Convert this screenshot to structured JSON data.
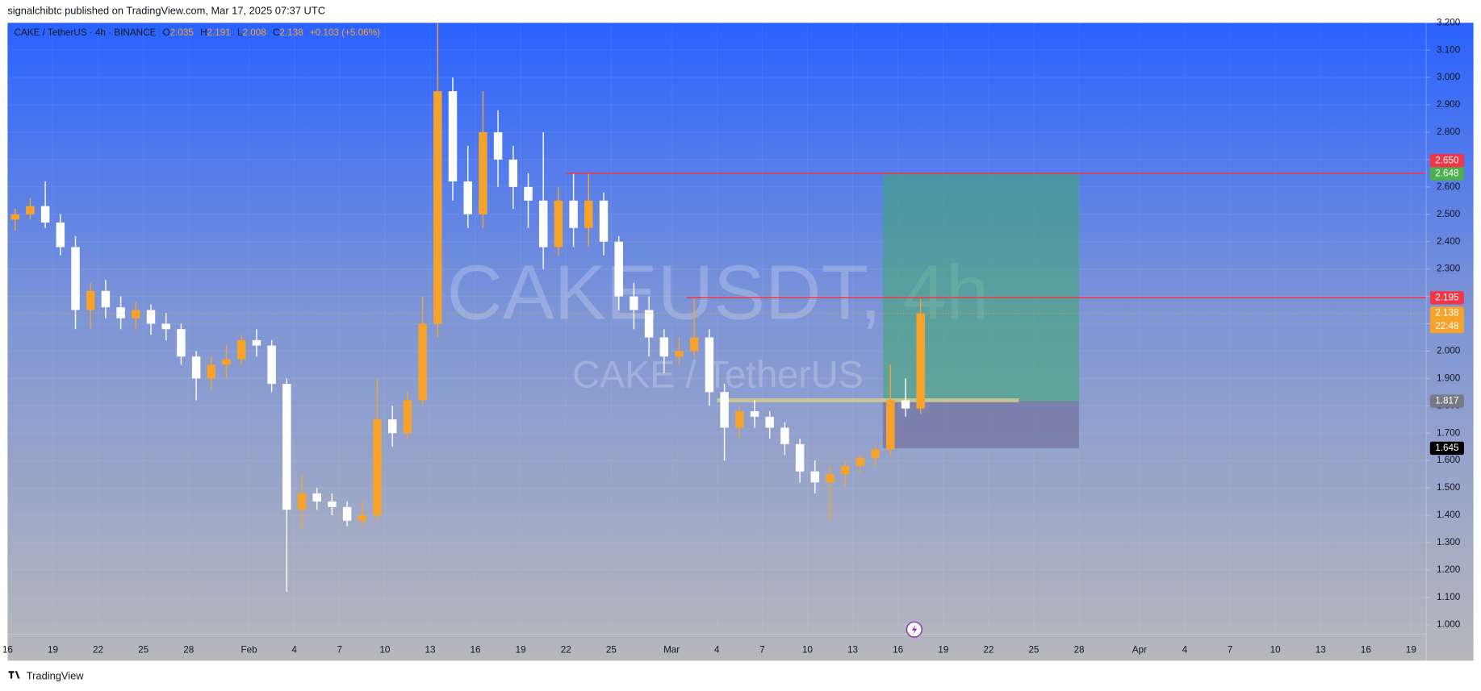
{
  "header": {
    "text": "signalchibtc published on TradingView.com, Mar 17, 2025 07:37 UTC"
  },
  "footer": {
    "brand": "TradingView"
  },
  "chart_data": {
    "type": "candlestick",
    "symbol": "CAKE / TetherUS · 4h · BINANCE",
    "ohlc_labels": [
      "O",
      "H",
      "L",
      "C"
    ],
    "ohlc_values": [
      2.035,
      2.191,
      2.008,
      2.138
    ],
    "change": "+0.103 (+5.06%)",
    "watermark_title": "CAKEUSDT, 4h",
    "watermark_subtitle": "CAKE / TetherUS",
    "up_color": "#f7a32b",
    "down_color": "#ffffff",
    "x": [
      "2025-01-16",
      "2025-01-17",
      "2025-01-18",
      "2025-01-19",
      "2025-01-20",
      "2025-01-21",
      "2025-01-22",
      "2025-01-23",
      "2025-01-24",
      "2025-01-25",
      "2025-01-26",
      "2025-01-27",
      "2025-01-28",
      "2025-01-29",
      "2025-01-30",
      "2025-01-31",
      "2025-02-01",
      "2025-02-02",
      "2025-02-03",
      "2025-02-04",
      "2025-02-05",
      "2025-02-06",
      "2025-02-07",
      "2025-02-08",
      "2025-02-09",
      "2025-02-10",
      "2025-02-11",
      "2025-02-12",
      "2025-02-13",
      "2025-02-14",
      "2025-02-15",
      "2025-02-16",
      "2025-02-17",
      "2025-02-18",
      "2025-02-19",
      "2025-02-20",
      "2025-02-21",
      "2025-02-22",
      "2025-02-23",
      "2025-02-24",
      "2025-02-25",
      "2025-02-26",
      "2025-02-27",
      "2025-02-28",
      "2025-03-01",
      "2025-03-02",
      "2025-03-03",
      "2025-03-04",
      "2025-03-05",
      "2025-03-06",
      "2025-03-07",
      "2025-03-08",
      "2025-03-09",
      "2025-03-10",
      "2025-03-11",
      "2025-03-12",
      "2025-03-13",
      "2025-03-14",
      "2025-03-15",
      "2025-03-16",
      "2025-03-17"
    ],
    "open": [
      2.48,
      2.5,
      2.53,
      2.47,
      2.38,
      2.15,
      2.22,
      2.16,
      2.12,
      2.15,
      2.1,
      2.08,
      1.98,
      1.9,
      1.95,
      1.97,
      2.04,
      2.02,
      1.88,
      1.42,
      1.48,
      1.45,
      1.43,
      1.38,
      1.4,
      1.75,
      1.7,
      1.82,
      2.1,
      2.95,
      2.62,
      2.5,
      2.8,
      2.7,
      2.6,
      2.55,
      2.38,
      2.55,
      2.45,
      2.55,
      2.4,
      2.2,
      2.15,
      2.05,
      1.98,
      2.0,
      2.05,
      1.85,
      1.72,
      1.78,
      1.76,
      1.72,
      1.66,
      1.56,
      1.52,
      1.55,
      1.58,
      1.61,
      1.64,
      1.82,
      1.79
    ],
    "high": [
      2.52,
      2.56,
      2.62,
      2.5,
      2.42,
      2.25,
      2.26,
      2.2,
      2.18,
      2.17,
      2.14,
      2.1,
      2.0,
      1.98,
      2.02,
      2.06,
      2.08,
      2.04,
      1.9,
      1.55,
      1.5,
      1.48,
      1.45,
      1.45,
      1.9,
      1.8,
      1.85,
      2.2,
      3.2,
      3.0,
      2.75,
      2.95,
      2.88,
      2.75,
      2.65,
      2.8,
      2.6,
      2.65,
      2.65,
      2.58,
      2.42,
      2.25,
      2.2,
      2.08,
      2.05,
      2.19,
      2.08,
      1.88,
      1.8,
      1.82,
      1.78,
      1.74,
      1.68,
      1.6,
      1.58,
      1.6,
      1.62,
      1.66,
      1.95,
      1.9,
      2.19
    ],
    "low": [
      2.44,
      2.48,
      2.45,
      2.35,
      2.08,
      2.08,
      2.12,
      2.08,
      2.08,
      2.06,
      2.04,
      1.95,
      1.82,
      1.86,
      1.9,
      1.95,
      1.98,
      1.85,
      1.12,
      1.35,
      1.42,
      1.4,
      1.36,
      1.36,
      1.38,
      1.65,
      1.68,
      1.8,
      2.05,
      2.55,
      2.45,
      2.45,
      2.6,
      2.52,
      2.45,
      2.3,
      2.35,
      2.38,
      2.38,
      2.35,
      2.15,
      2.08,
      1.98,
      1.92,
      1.95,
      1.98,
      1.8,
      1.6,
      1.68,
      1.72,
      1.68,
      1.62,
      1.52,
      1.48,
      1.38,
      1.5,
      1.55,
      1.58,
      1.62,
      1.76,
      1.77
    ],
    "close": [
      2.5,
      2.53,
      2.47,
      2.38,
      2.15,
      2.22,
      2.16,
      2.12,
      2.15,
      2.1,
      2.08,
      1.98,
      1.9,
      1.95,
      1.97,
      2.04,
      2.02,
      1.88,
      1.42,
      1.48,
      1.45,
      1.43,
      1.38,
      1.4,
      1.75,
      1.7,
      1.82,
      2.1,
      2.95,
      2.62,
      2.5,
      2.8,
      2.7,
      2.6,
      2.55,
      2.38,
      2.55,
      2.45,
      2.55,
      2.4,
      2.2,
      2.15,
      2.05,
      1.98,
      2.0,
      2.05,
      1.85,
      1.72,
      1.78,
      1.76,
      1.72,
      1.66,
      1.56,
      1.52,
      1.55,
      1.58,
      1.61,
      1.64,
      1.82,
      1.79,
      2.138
    ],
    "xlim": [
      "2025-01-16",
      "2025-04-20"
    ],
    "xticks": [
      {
        "value": "2025-01-16",
        "label": "16"
      },
      {
        "value": "2025-01-19",
        "label": "19"
      },
      {
        "value": "2025-01-22",
        "label": "22"
      },
      {
        "value": "2025-01-25",
        "label": "25"
      },
      {
        "value": "2025-01-28",
        "label": "28"
      },
      {
        "value": "2025-02-01",
        "label": "Feb"
      },
      {
        "value": "2025-02-04",
        "label": "4"
      },
      {
        "value": "2025-02-07",
        "label": "7"
      },
      {
        "value": "2025-02-10",
        "label": "10"
      },
      {
        "value": "2025-02-13",
        "label": "13"
      },
      {
        "value": "2025-02-16",
        "label": "16"
      },
      {
        "value": "2025-02-19",
        "label": "19"
      },
      {
        "value": "2025-02-22",
        "label": "22"
      },
      {
        "value": "2025-02-25",
        "label": "25"
      },
      {
        "value": "2025-03-01",
        "label": "Mar"
      },
      {
        "value": "2025-03-04",
        "label": "4"
      },
      {
        "value": "2025-03-07",
        "label": "7"
      },
      {
        "value": "2025-03-10",
        "label": "10"
      },
      {
        "value": "2025-03-13",
        "label": "13"
      },
      {
        "value": "2025-03-16",
        "label": "16"
      },
      {
        "value": "2025-03-19",
        "label": "19"
      },
      {
        "value": "2025-03-22",
        "label": "22"
      },
      {
        "value": "2025-03-25",
        "label": "25"
      },
      {
        "value": "2025-03-28",
        "label": "28"
      },
      {
        "value": "2025-04-01",
        "label": "Apr"
      },
      {
        "value": "2025-04-04",
        "label": "4"
      },
      {
        "value": "2025-04-07",
        "label": "7"
      },
      {
        "value": "2025-04-10",
        "label": "10"
      },
      {
        "value": "2025-04-13",
        "label": "13"
      },
      {
        "value": "2025-04-16",
        "label": "16"
      },
      {
        "value": "2025-04-19",
        "label": "19"
      }
    ],
    "ylim": [
      0.965,
      3.2
    ],
    "yticks": [
      {
        "value": 1.0,
        "label": "1.000"
      },
      {
        "value": 1.1,
        "label": "1.100"
      },
      {
        "value": 1.2,
        "label": "1.200"
      },
      {
        "value": 1.3,
        "label": "1.300"
      },
      {
        "value": 1.4,
        "label": "1.400"
      },
      {
        "value": 1.5,
        "label": "1.500"
      },
      {
        "value": 1.6,
        "label": "1.600"
      },
      {
        "value": 1.7,
        "label": "1.700"
      },
      {
        "value": 1.8,
        "label": "1.800"
      },
      {
        "value": 1.9,
        "label": "1.900"
      },
      {
        "value": 2.0,
        "label": "2.000"
      },
      {
        "value": 2.1,
        "label": "2.100"
      },
      {
        "value": 2.2,
        "label": "2.200"
      },
      {
        "value": 2.3,
        "label": "2.300"
      },
      {
        "value": 2.4,
        "label": "2.400"
      },
      {
        "value": 2.5,
        "label": "2.500"
      },
      {
        "value": 2.6,
        "label": "2.600"
      },
      {
        "value": 2.7,
        "label": "2.700"
      },
      {
        "value": 2.8,
        "label": "2.800"
      },
      {
        "value": 2.9,
        "label": "2.900"
      },
      {
        "value": 3.0,
        "label": "3.000"
      },
      {
        "value": 3.1,
        "label": "3.100"
      },
      {
        "value": 3.2,
        "label": "3.200"
      }
    ],
    "grid": true,
    "levels": [
      {
        "value": 2.65,
        "label": "2.650",
        "start": "2025-02-22",
        "color": "#f23645"
      },
      {
        "value": 2.195,
        "start": "2025-03-02",
        "color": "#f23645"
      }
    ],
    "last_price": {
      "value": 2.138,
      "countdown": "22:48",
      "color": "#f7a32b"
    },
    "position": {
      "start": "2025-03-15",
      "end": "2025-03-28",
      "target": 2.648,
      "entry": 1.817,
      "stop": 1.645,
      "target_color": "#4caf50",
      "entry_color": "#787b86",
      "stop_color": "#000000"
    },
    "drawings": [
      {
        "value": 1.82,
        "start": "2025-03-04",
        "end": "2025-03-24",
        "color": "#d8cc8c"
      }
    ]
  }
}
